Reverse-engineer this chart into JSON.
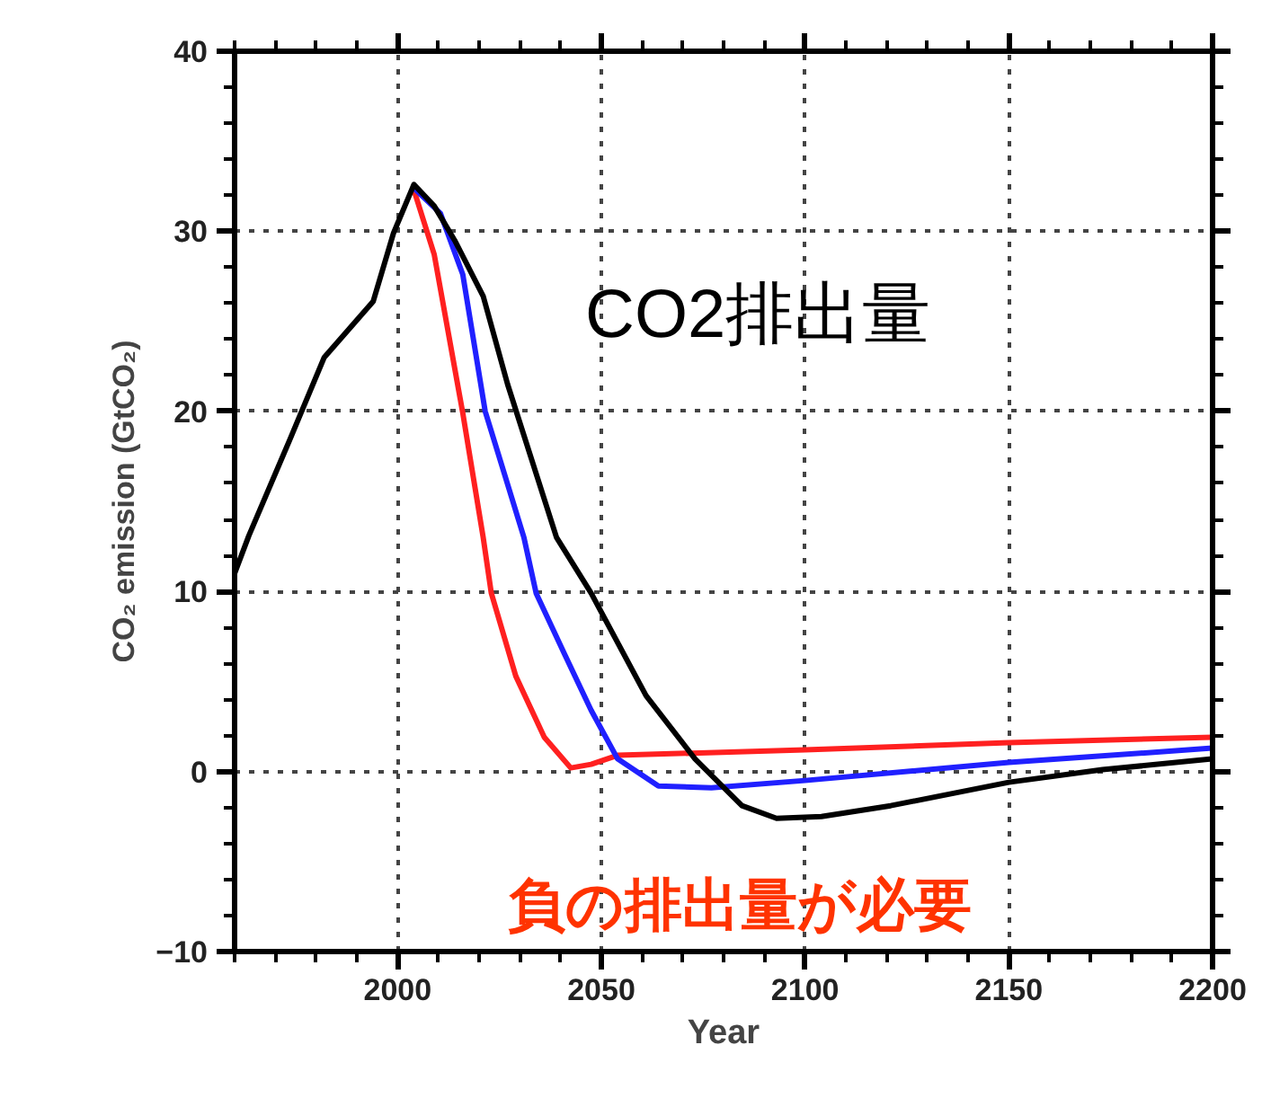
{
  "chart_data": {
    "type": "line",
    "xlabel": "Year",
    "ylabel": "CO₂ emission (GtCO₂)",
    "xlim": [
      1960,
      2200
    ],
    "ylim": [
      -10,
      40
    ],
    "xticks": [
      2000,
      2050,
      2100,
      2150,
      2200
    ],
    "yticks": [
      -10,
      0,
      10,
      20,
      30,
      40
    ],
    "grid": true,
    "marker": "none",
    "line_style": "solid",
    "annotations": [
      "CO2排出量",
      "負の排出量が必要"
    ],
    "series": [
      {
        "color": "#ff2020",
        "x": [
          2004,
          2009,
          2016,
          2021,
          2023,
          2029,
          2036,
          2042.5,
          2047.5,
          2054,
          2100,
          2150,
          2200
        ],
        "values": [
          32.3,
          28.7,
          19.9,
          13,
          9.9,
          5.3,
          1.9,
          0.2,
          0.4,
          0.9,
          1.2,
          1.6,
          1.9
        ]
      },
      {
        "color": "#2020ff",
        "x": [
          2004,
          2010.5,
          2016,
          2021.5,
          2031,
          2034,
          2041,
          2047.5,
          2054,
          2064,
          2077,
          2100,
          2150,
          2200
        ],
        "values": [
          32.4,
          31,
          27.6,
          20,
          13,
          9.9,
          6.5,
          3.4,
          0.7,
          -0.8,
          -0.9,
          -0.5,
          0.5,
          1.3
        ]
      },
      {
        "color": "#000000",
        "x": [
          1960,
          1963.5,
          1973.5,
          1982,
          1994,
          1999,
          2004,
          2009,
          2014,
          2021,
          2027,
          2039,
          2047.5,
          2061,
          2073,
          2084.5,
          2093,
          2104,
          2121,
          2150,
          2173,
          2200
        ],
        "values": [
          11,
          13.1,
          18.4,
          23,
          26.1,
          29.9,
          32.6,
          31.4,
          29.5,
          26.4,
          21.5,
          13,
          9.9,
          4.2,
          0.7,
          -1.9,
          -2.6,
          -2.5,
          -1.9,
          -0.6,
          0.1,
          0.7
        ]
      }
    ]
  }
}
